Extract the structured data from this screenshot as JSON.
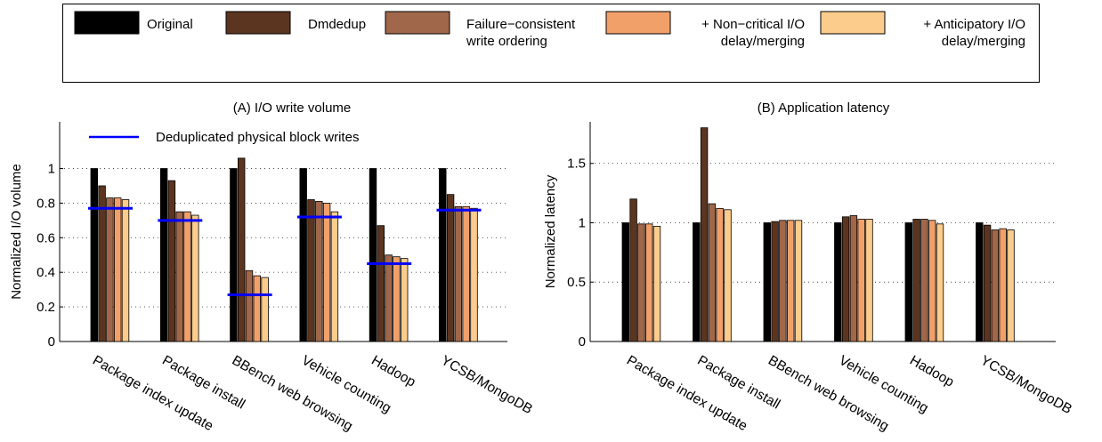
{
  "legend": {
    "entries": [
      {
        "lines": [
          "Original"
        ],
        "color": "#000000",
        "align": "start"
      },
      {
        "lines": [
          "Dmdedup"
        ],
        "color": "#5b3520",
        "align": "start"
      },
      {
        "lines": [
          "Failure−consistent",
          "write ordering"
        ],
        "color": "#a0674a",
        "align": "start"
      },
      {
        "lines": [
          "+ Non−critical I/O",
          "delay/merging"
        ],
        "color": "#f2a06a",
        "align": "end"
      },
      {
        "lines": [
          "+ Anticipatory I/O",
          "delay/merging"
        ],
        "color": "#fccc8c",
        "align": "end"
      }
    ]
  },
  "chart_data": [
    {
      "type": "bar",
      "title": "(A) I/O write volume",
      "xlabel": "",
      "ylabel": "Normalized I/O volume",
      "ylim": [
        0,
        1.27
      ],
      "yticks": [
        0,
        0.2,
        0.4,
        0.6,
        0.8,
        1
      ],
      "ytick_labels": [
        "0",
        "0.2",
        "0.4",
        "0.6",
        "0.8",
        "1"
      ],
      "grid": "y-dotted",
      "categories": [
        "Package index update",
        "Package install",
        "BBench web browsing",
        "Vehicle counting",
        "Hadoop",
        "YCSB/MongoDB"
      ],
      "series": [
        {
          "name": "Original",
          "values": [
            1,
            1,
            1,
            1,
            1,
            1
          ]
        },
        {
          "name": "Dmdedup",
          "values": [
            0.9,
            0.93,
            1.06,
            0.82,
            0.67,
            0.85
          ]
        },
        {
          "name": "Failure−consistent write ordering",
          "values": [
            0.83,
            0.75,
            0.41,
            0.81,
            0.5,
            0.78
          ]
        },
        {
          "name": "+ Non−critical I/O delay/merging",
          "values": [
            0.83,
            0.75,
            0.38,
            0.8,
            0.49,
            0.78
          ]
        },
        {
          "name": "+ Anticipatory I/O delay/merging",
          "values": [
            0.82,
            0.73,
            0.37,
            0.75,
            0.48,
            0.77
          ]
        }
      ],
      "reference_lines": {
        "name": "Deduplicated physical block writes",
        "color": "#0000ff",
        "values": [
          0.77,
          0.7,
          0.27,
          0.72,
          0.45,
          0.76
        ]
      }
    },
    {
      "type": "bar",
      "title": "(B) Application latency",
      "xlabel": "",
      "ylabel": "Normalized latency",
      "ylim": [
        0,
        1.85
      ],
      "yticks": [
        0,
        0.5,
        1,
        1.5
      ],
      "ytick_labels": [
        "0",
        "0.5",
        "1",
        "1.5"
      ],
      "grid": "y-dotted",
      "categories": [
        "Package index update",
        "Package install",
        "BBench web browsing",
        "Vehicle counting",
        "Hadoop",
        "YCSB/MongoDB"
      ],
      "series": [
        {
          "name": "Original",
          "values": [
            1,
            1,
            1,
            1,
            1,
            1
          ]
        },
        {
          "name": "Dmdedup",
          "values": [
            1.2,
            1.8,
            1.01,
            1.05,
            1.03,
            0.98
          ]
        },
        {
          "name": "Failure−consistent write ordering",
          "values": [
            0.99,
            1.16,
            1.02,
            1.06,
            1.03,
            0.94
          ]
        },
        {
          "name": "+ Non−critical I/O delay/merging",
          "values": [
            0.99,
            1.12,
            1.02,
            1.03,
            1.02,
            0.95
          ]
        },
        {
          "name": "+ Anticipatory I/O delay/merging",
          "values": [
            0.97,
            1.11,
            1.02,
            1.03,
            0.99,
            0.94
          ]
        }
      ]
    }
  ]
}
